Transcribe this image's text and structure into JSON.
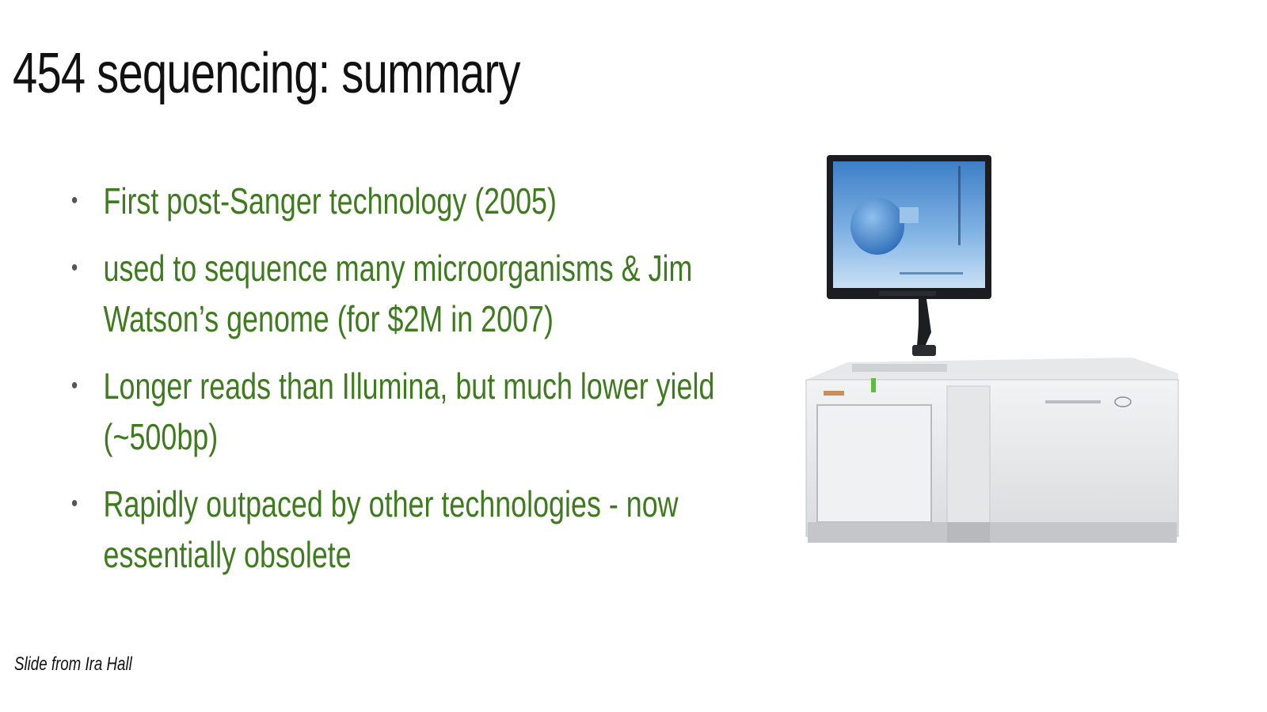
{
  "slide": {
    "title": "454 sequencing: summary",
    "bullets": [
      "First post-Sanger technology (2005)",
      "used to sequence many microorganisms & Jim Watson’s genome (for $2M in 2007)",
      "Longer reads than Illumina, but much lower yield (~500bp)",
      "Rapidly outpaced by other technologies - now essentially obsolete"
    ],
    "credit": "Slide from Ira Hall"
  },
  "image": {
    "icon": "sequencer-instrument-icon"
  },
  "colors": {
    "title": "#111111",
    "bullet_text": "#3e7a1e",
    "background": "#ffffff"
  }
}
